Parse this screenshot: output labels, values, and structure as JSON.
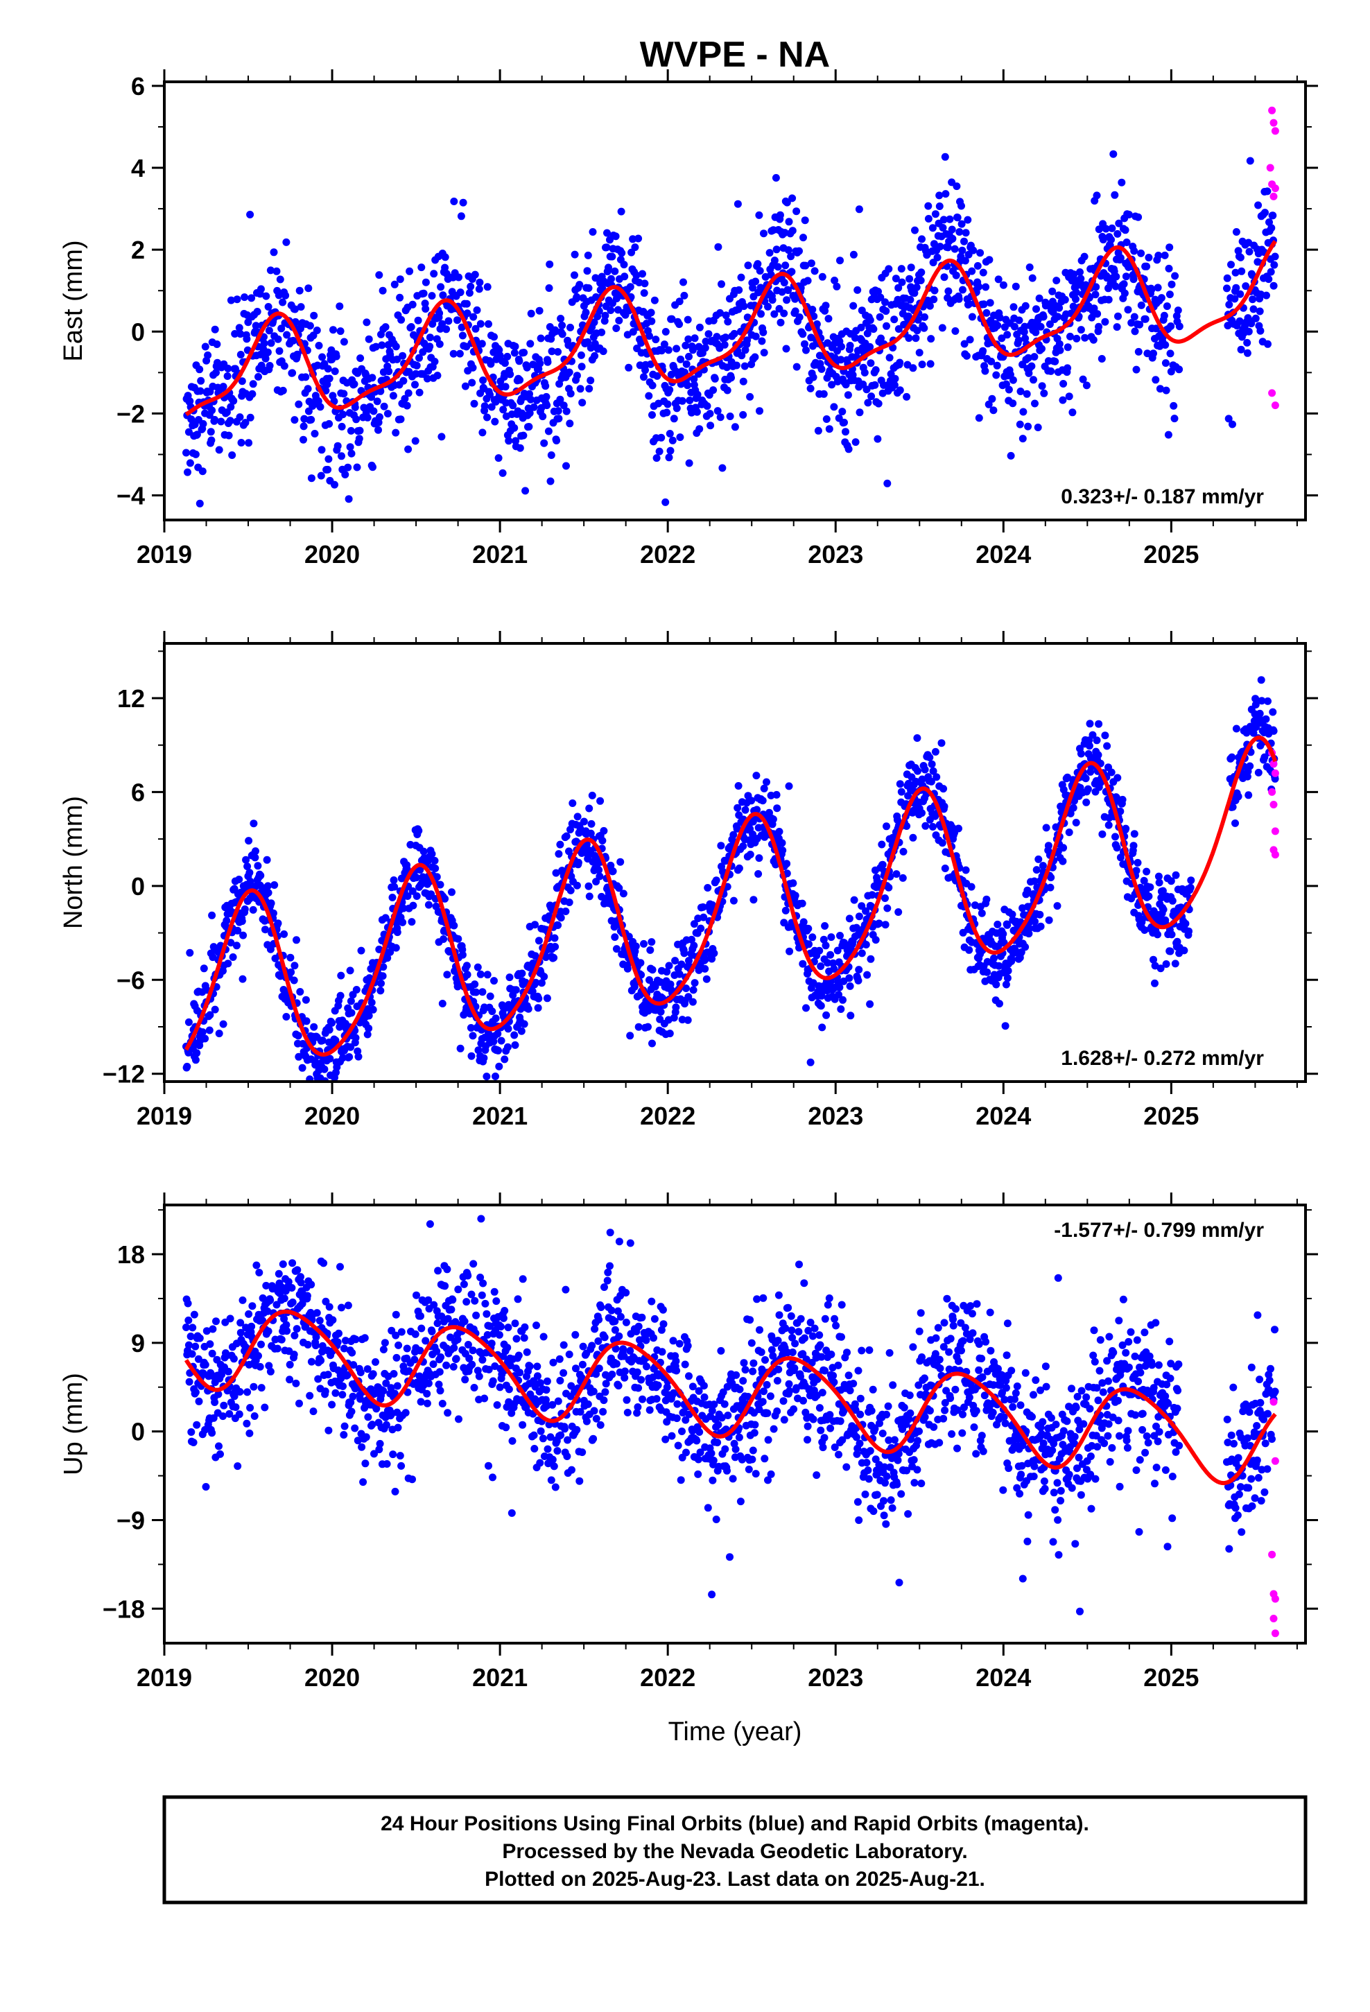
{
  "title": "WVPE - NA",
  "xlabel": "Time (year)",
  "footer": {
    "lines": [
      "24 Hour Positions Using Final Orbits (blue) and Rapid Orbits (magenta).",
      "Processed by the Nevada Geodetic Laboratory.",
      "Plotted on 2025-Aug-23. Last data on 2025-Aug-21."
    ]
  },
  "colors": {
    "final_orbits": "#0000ff",
    "rapid_orbits": "#ff00ff",
    "model_fit": "#ff0000"
  },
  "chart_data": [
    {
      "type": "scatter",
      "ylabel": "East (mm)",
      "xlim": [
        2019.0,
        2025.8
      ],
      "ylim": [
        -4.6,
        6.1
      ],
      "xticks": [
        "2019",
        "2020",
        "2021",
        "2022",
        "2023",
        "2024",
        "2025"
      ],
      "yticks": [
        "−4",
        "−2",
        "0",
        "2",
        "4",
        "6"
      ],
      "yticks_values": [
        -4,
        -2,
        0,
        2,
        4,
        6
      ],
      "rate_label": "0.323+/- 0.187 mm/yr",
      "rate_position": "bottom-right",
      "model": {
        "offset": -0.1,
        "trend": 0.323,
        "annual_amp": 1.1,
        "annual_peak": 0.65,
        "semi_amp": 0.35,
        "semi_phase": 0.2
      },
      "noise": 0.9,
      "series": [
        {
          "name": "Final Orbits",
          "x_start": 2019.13,
          "x_end": 2025.62,
          "gaps": [
            [
              2025.05,
              2025.33
            ]
          ]
        },
        {
          "name": "Rapid Orbits",
          "points": [
            [
              2025.6,
              5.4
            ],
            [
              2025.61,
              5.1
            ],
            [
              2025.62,
              4.9
            ],
            [
              2025.59,
              4.0
            ],
            [
              2025.6,
              3.6
            ],
            [
              2025.61,
              3.3
            ],
            [
              2025.62,
              3.5
            ],
            [
              2025.6,
              -1.5
            ],
            [
              2025.62,
              -1.8
            ]
          ]
        }
      ]
    },
    {
      "type": "scatter",
      "ylabel": "North (mm)",
      "xlim": [
        2019.0,
        2025.8
      ],
      "ylim": [
        -12.5,
        15.5
      ],
      "xticks": [
        "2019",
        "2020",
        "2021",
        "2022",
        "2023",
        "2024",
        "2025"
      ],
      "yticks": [
        "−12",
        "−6",
        "0",
        "6",
        "12"
      ],
      "yticks_values": [
        -12,
        -6,
        0,
        6,
        12
      ],
      "rate_label": "1.628+/- 0.272 mm/yr",
      "rate_position": "bottom-right",
      "model": {
        "offset": -1.8,
        "trend": 1.628,
        "annual_amp": 5.5,
        "annual_peak": 0.5,
        "semi_amp": 0.8,
        "semi_phase": 0.05
      },
      "noise": 1.3,
      "series": [
        {
          "name": "Final Orbits",
          "x_start": 2019.13,
          "x_end": 2025.62,
          "gaps": [
            [
              2025.12,
              2025.35
            ]
          ]
        },
        {
          "name": "Rapid Orbits",
          "points": [
            [
              2025.6,
              8.5
            ],
            [
              2025.61,
              7.8
            ],
            [
              2025.62,
              7.2
            ],
            [
              2025.6,
              6.0
            ],
            [
              2025.61,
              5.2
            ],
            [
              2025.62,
              3.5
            ],
            [
              2025.61,
              2.3
            ],
            [
              2025.62,
              2.0
            ]
          ]
        }
      ]
    },
    {
      "type": "scatter",
      "ylabel": "Up (mm)",
      "xlim": [
        2019.0,
        2025.8
      ],
      "ylim": [
        -21.5,
        23.0
      ],
      "xticks": [
        "2019",
        "2020",
        "2021",
        "2022",
        "2023",
        "2024",
        "2025"
      ],
      "yticks": [
        "−18",
        "−9",
        "0",
        "9",
        "18"
      ],
      "yticks_values": [
        -18,
        -9,
        0,
        9,
        18
      ],
      "rate_label": "-1.577+/- 0.799 mm/yr",
      "rate_position": "top-right",
      "model": {
        "offset": 4.0,
        "trend": -1.577,
        "annual_amp": 4.2,
        "annual_peak": 0.78,
        "semi_amp": 0.6,
        "semi_phase": 0.1
      },
      "noise": 3.5,
      "series": [
        {
          "name": "Final Orbits",
          "x_start": 2019.13,
          "x_end": 2025.62,
          "gaps": [
            [
              2025.05,
              2025.33
            ]
          ]
        },
        {
          "name": "Rapid Orbits",
          "points": [
            [
              2025.61,
              3.0
            ],
            [
              2025.62,
              -3.0
            ],
            [
              2025.6,
              -12.5
            ],
            [
              2025.61,
              -16.5
            ],
            [
              2025.62,
              -17.0
            ],
            [
              2025.61,
              -19.0
            ],
            [
              2025.62,
              -20.5
            ]
          ]
        }
      ]
    }
  ]
}
